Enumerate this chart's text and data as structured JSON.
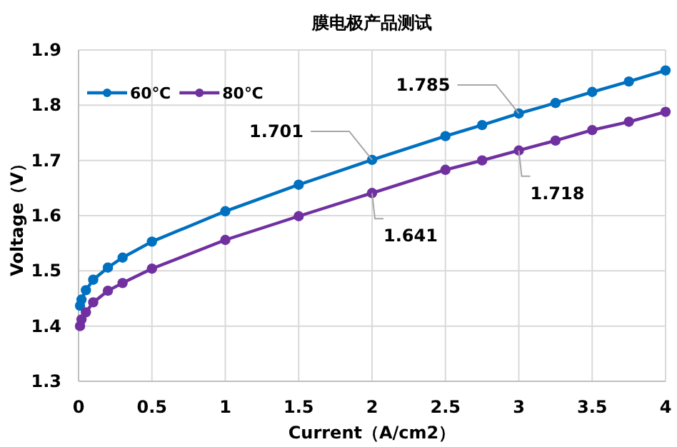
{
  "chart_data": {
    "type": "line",
    "title": "膜电极产品测试",
    "xlabel": "Current（A/cm2）",
    "ylabel": "Voltage（V）",
    "x": [
      0.01,
      0.02,
      0.05,
      0.1,
      0.2,
      0.3,
      0.5,
      1,
      1.5,
      2,
      2.5,
      2.75,
      3,
      3.25,
      3.5,
      3.75,
      4
    ],
    "series": [
      {
        "name": "60℃",
        "color": "#0070c0",
        "values": [
          1.437,
          1.448,
          1.465,
          1.484,
          1.506,
          1.524,
          1.553,
          1.608,
          1.656,
          1.701,
          1.744,
          1.764,
          1.785,
          1.804,
          1.824,
          1.843,
          1.863
        ],
        "value_labels": [
          null,
          null,
          null,
          null,
          null,
          null,
          null,
          null,
          null,
          "1.701",
          null,
          null,
          "1.785",
          null,
          null,
          null,
          null
        ]
      },
      {
        "name": "80℃",
        "color": "#7030a0",
        "values": [
          1.4,
          1.412,
          1.425,
          1.443,
          1.464,
          1.478,
          1.504,
          1.556,
          1.599,
          1.641,
          1.683,
          1.7,
          1.718,
          1.736,
          1.755,
          1.77,
          1.788
        ],
        "value_labels": [
          null,
          null,
          null,
          null,
          null,
          null,
          null,
          null,
          null,
          "1.641",
          null,
          null,
          "1.718",
          null,
          null,
          null,
          null
        ]
      }
    ],
    "xlim": [
      0,
      4
    ],
    "xticks": [
      0,
      0.5,
      1,
      1.5,
      2,
      2.5,
      3,
      3.5,
      4
    ],
    "ylim": [
      1.3,
      1.9
    ],
    "yticks": [
      1.3,
      1.4,
      1.5,
      1.6,
      1.7,
      1.8,
      1.9
    ],
    "grid": true,
    "legend": "top left",
    "marker": "circle",
    "line_style": "solid"
  }
}
